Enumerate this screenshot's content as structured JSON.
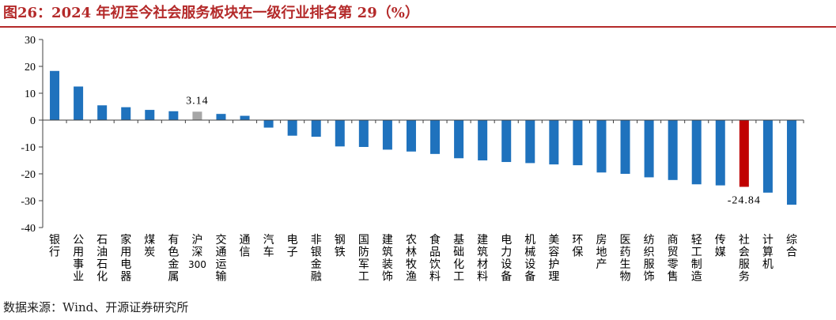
{
  "title": "图26：2024 年初至今社会服务板块在一级行业排名第 29（%）",
  "source": "数据来源：Wind、开源证券研究所",
  "colors": {
    "title": "#b42a2a",
    "bar_default": "#1f72bd",
    "bar_benchmark": "#a6a6a6",
    "bar_highlight": "#c00000",
    "axis": "#404040"
  },
  "chart_data": {
    "type": "bar",
    "ylim": [
      -40,
      30
    ],
    "yticks": [
      30,
      20,
      10,
      0,
      -10,
      -20,
      -30,
      -40
    ],
    "grid": false,
    "legend": "none",
    "categories": [
      "银行",
      "公用事业",
      "石油石化",
      "家用电器",
      "煤炭",
      "有色金属",
      "沪深300",
      "交通运输",
      "通信",
      "汽车",
      "电子",
      "非银金融",
      "钢铁",
      "国防军工",
      "建筑装饰",
      "农林牧渔",
      "食品饮料",
      "基础化工",
      "建筑材料",
      "电力设备",
      "机械设备",
      "美容护理",
      "环保",
      "房地产",
      "医药生物",
      "纺织服饰",
      "商贸零售",
      "轻工制造",
      "传媒",
      "社会服务",
      "计算机",
      "综合"
    ],
    "values": [
      18.3,
      12.5,
      5.5,
      4.8,
      3.8,
      3.3,
      3.14,
      2.3,
      1.6,
      -2.8,
      -5.8,
      -6.2,
      -9.8,
      -10.0,
      -11.0,
      -11.7,
      -12.6,
      -14.2,
      -15.0,
      -15.6,
      -16.0,
      -16.5,
      -16.8,
      -19.5,
      -20.0,
      -21.3,
      -22.3,
      -23.9,
      -24.3,
      -24.84,
      -27.0,
      -31.5
    ],
    "benchmark_index": 6,
    "highlight_index": 29,
    "annotations": [
      {
        "index": 6,
        "text": "3.14"
      },
      {
        "index": 29,
        "text": "-24.84"
      }
    ]
  }
}
